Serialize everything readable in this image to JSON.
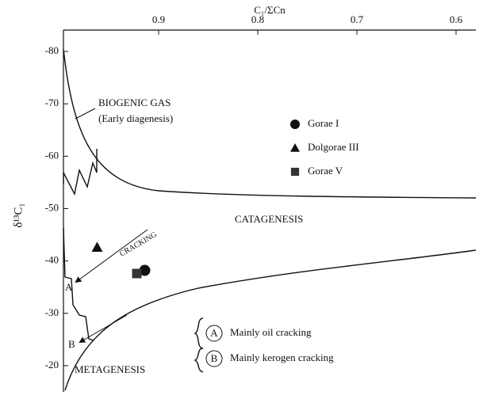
{
  "chart_data": {
    "type": "scatter",
    "x_label": "C₁/ΣCn",
    "y_label": "δ¹³C₁",
    "xlim": [
      0.996,
      0.58
    ],
    "xticks": [
      0.9,
      0.8,
      0.7,
      0.6
    ],
    "ylim": [
      -80,
      -15
    ],
    "yticks": [
      -80,
      -70,
      -60,
      -50,
      -40,
      -30,
      -20
    ],
    "y_inverted": true,
    "series": [
      {
        "name": "Gorae I",
        "color": "#111111",
        "marker": "circle",
        "x": [
          0.914
        ],
        "values": [
          -38.2
        ]
      },
      {
        "name": "Dolgorae III",
        "color": "#111111",
        "marker": "triangle",
        "x": [
          0.962
        ],
        "values": [
          -42.6
        ]
      },
      {
        "name": "Gorae V",
        "color": "#333333",
        "marker": "square",
        "x": [
          0.922
        ],
        "values": [
          -37.6
        ]
      }
    ],
    "annotations": {
      "biogenic": "BIOGENIC GAS",
      "early": "(Early diagenesis)",
      "catagenesis": "CATAGENESIS",
      "cracking": "CRACKING",
      "metagenesis": "METAGENESIS",
      "a": "A",
      "b": "B",
      "key_a_letter": "A",
      "key_a": "Mainly oil cracking",
      "key_b_letter": "B",
      "key_b": "Mainly kerogen cracking"
    }
  }
}
